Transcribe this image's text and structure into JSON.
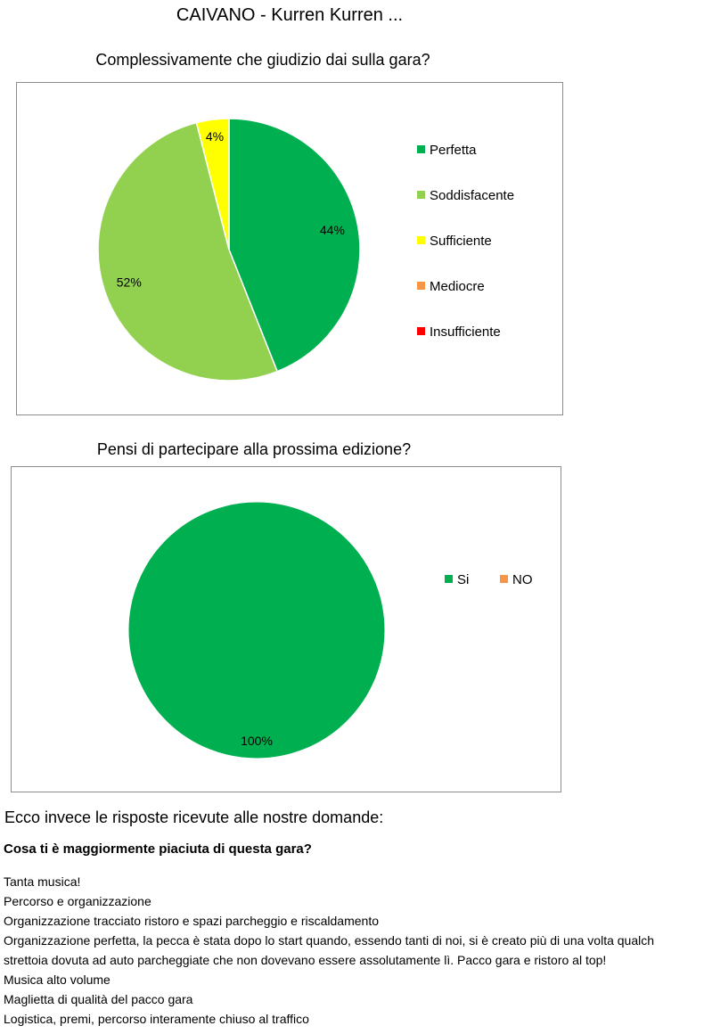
{
  "page": {
    "title": "CAIVANO  -  Kurren Kurren ..."
  },
  "chart_data": [
    {
      "type": "pie",
      "title": "Complessivamente che giudizio dai sulla gara?",
      "categories": [
        "Perfetta",
        "Soddisfacente",
        "Sufficiente",
        "Mediocre",
        "Insufficiente"
      ],
      "values": [
        44,
        52,
        4,
        0,
        0
      ],
      "value_labels": [
        "44%",
        "52%",
        "4%",
        "",
        ""
      ],
      "colors": [
        "#00b050",
        "#92d050",
        "#ffff00",
        "#f79646",
        "#ff0000"
      ],
      "legend_placement": "right"
    },
    {
      "type": "pie",
      "title": "Pensi di partecipare alla prossima edizione?",
      "categories": [
        "Si",
        "NO"
      ],
      "values": [
        100,
        0
      ],
      "value_labels": [
        "100%",
        ""
      ],
      "colors": [
        "#00b050",
        "#f79646"
      ],
      "legend_placement": "right"
    }
  ],
  "feedback": {
    "heading": "Ecco invece le risposte ricevute alle nostre domande:",
    "question": "Cosa ti è maggiormente piaciuta di questa gara?",
    "answers": [
      "Tanta musica!",
      "Percorso e organizzazione",
      "Organizzazione tracciato ristoro e spazi parcheggio e riscaldamento",
      "Organizzazione perfetta, la pecca è stata dopo lo start quando, essendo tanti di noi, si è creato più di una volta qualch",
      "strettoia dovuta ad auto parcheggiate che non dovevano essere assolutamente lì. Pacco gara e ristoro al top!",
      "Musica alto volume",
      "Maglietta di qualità del pacco gara",
      "Logistica, premi, percorso interamente chiuso al traffico"
    ]
  }
}
